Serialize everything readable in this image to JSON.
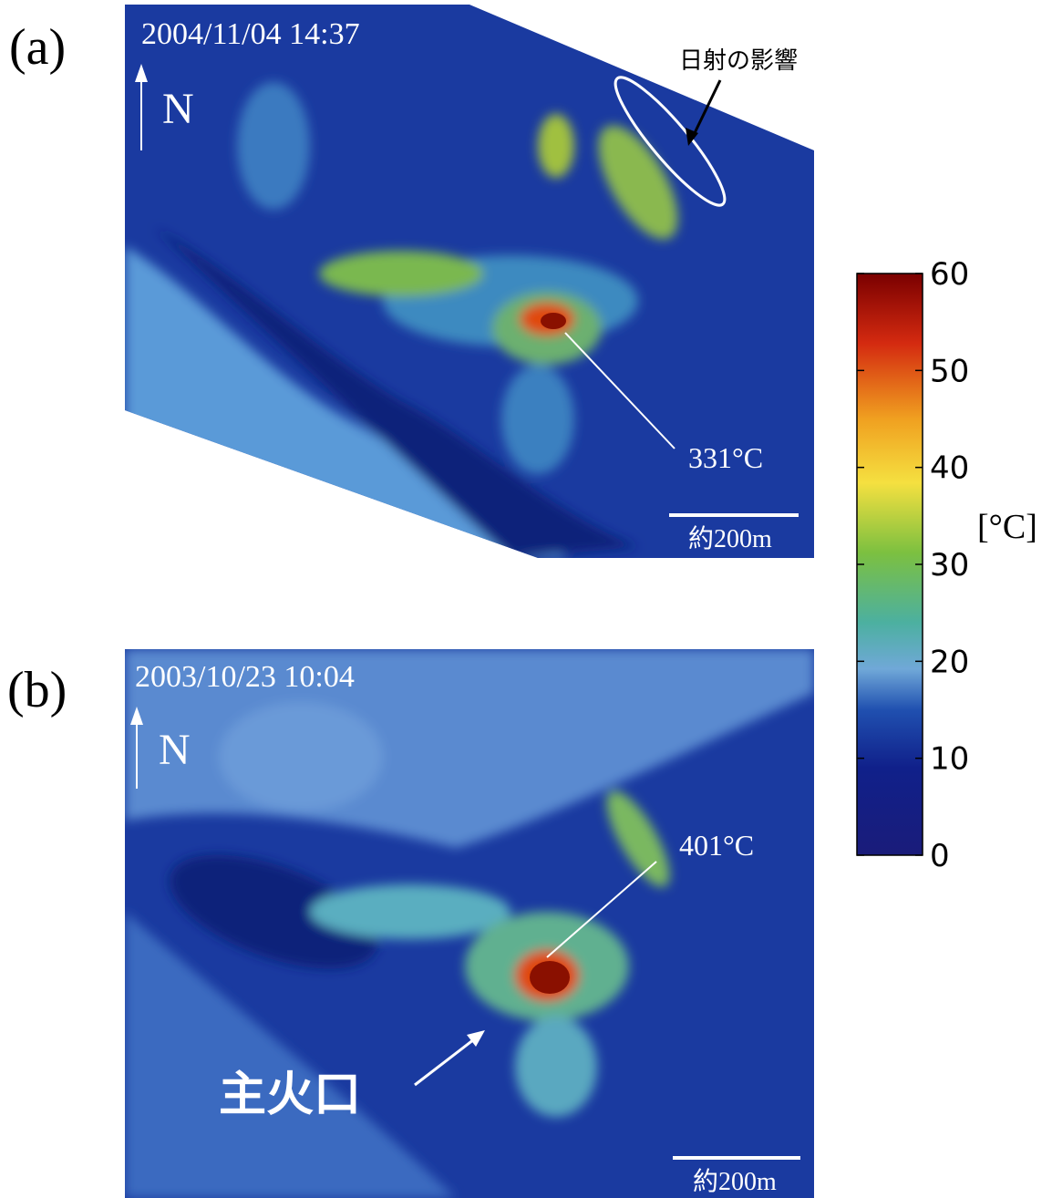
{
  "panels": [
    {
      "label": "(a)",
      "timestamp": "2004/11/04 14:37",
      "north": "N",
      "sun_note": "日射の影響",
      "max_temp": "331°C",
      "scale": "約200m"
    },
    {
      "label": "(b)",
      "timestamp": "2003/10/23 10:04",
      "north": "N",
      "max_temp": "401°C",
      "crater": "主火口",
      "scale": "約200m"
    }
  ],
  "colorbar": {
    "unit": "[°C]",
    "lim": [
      0,
      60
    ],
    "ticks": [
      0,
      10,
      20,
      30,
      40,
      50,
      60
    ]
  }
}
